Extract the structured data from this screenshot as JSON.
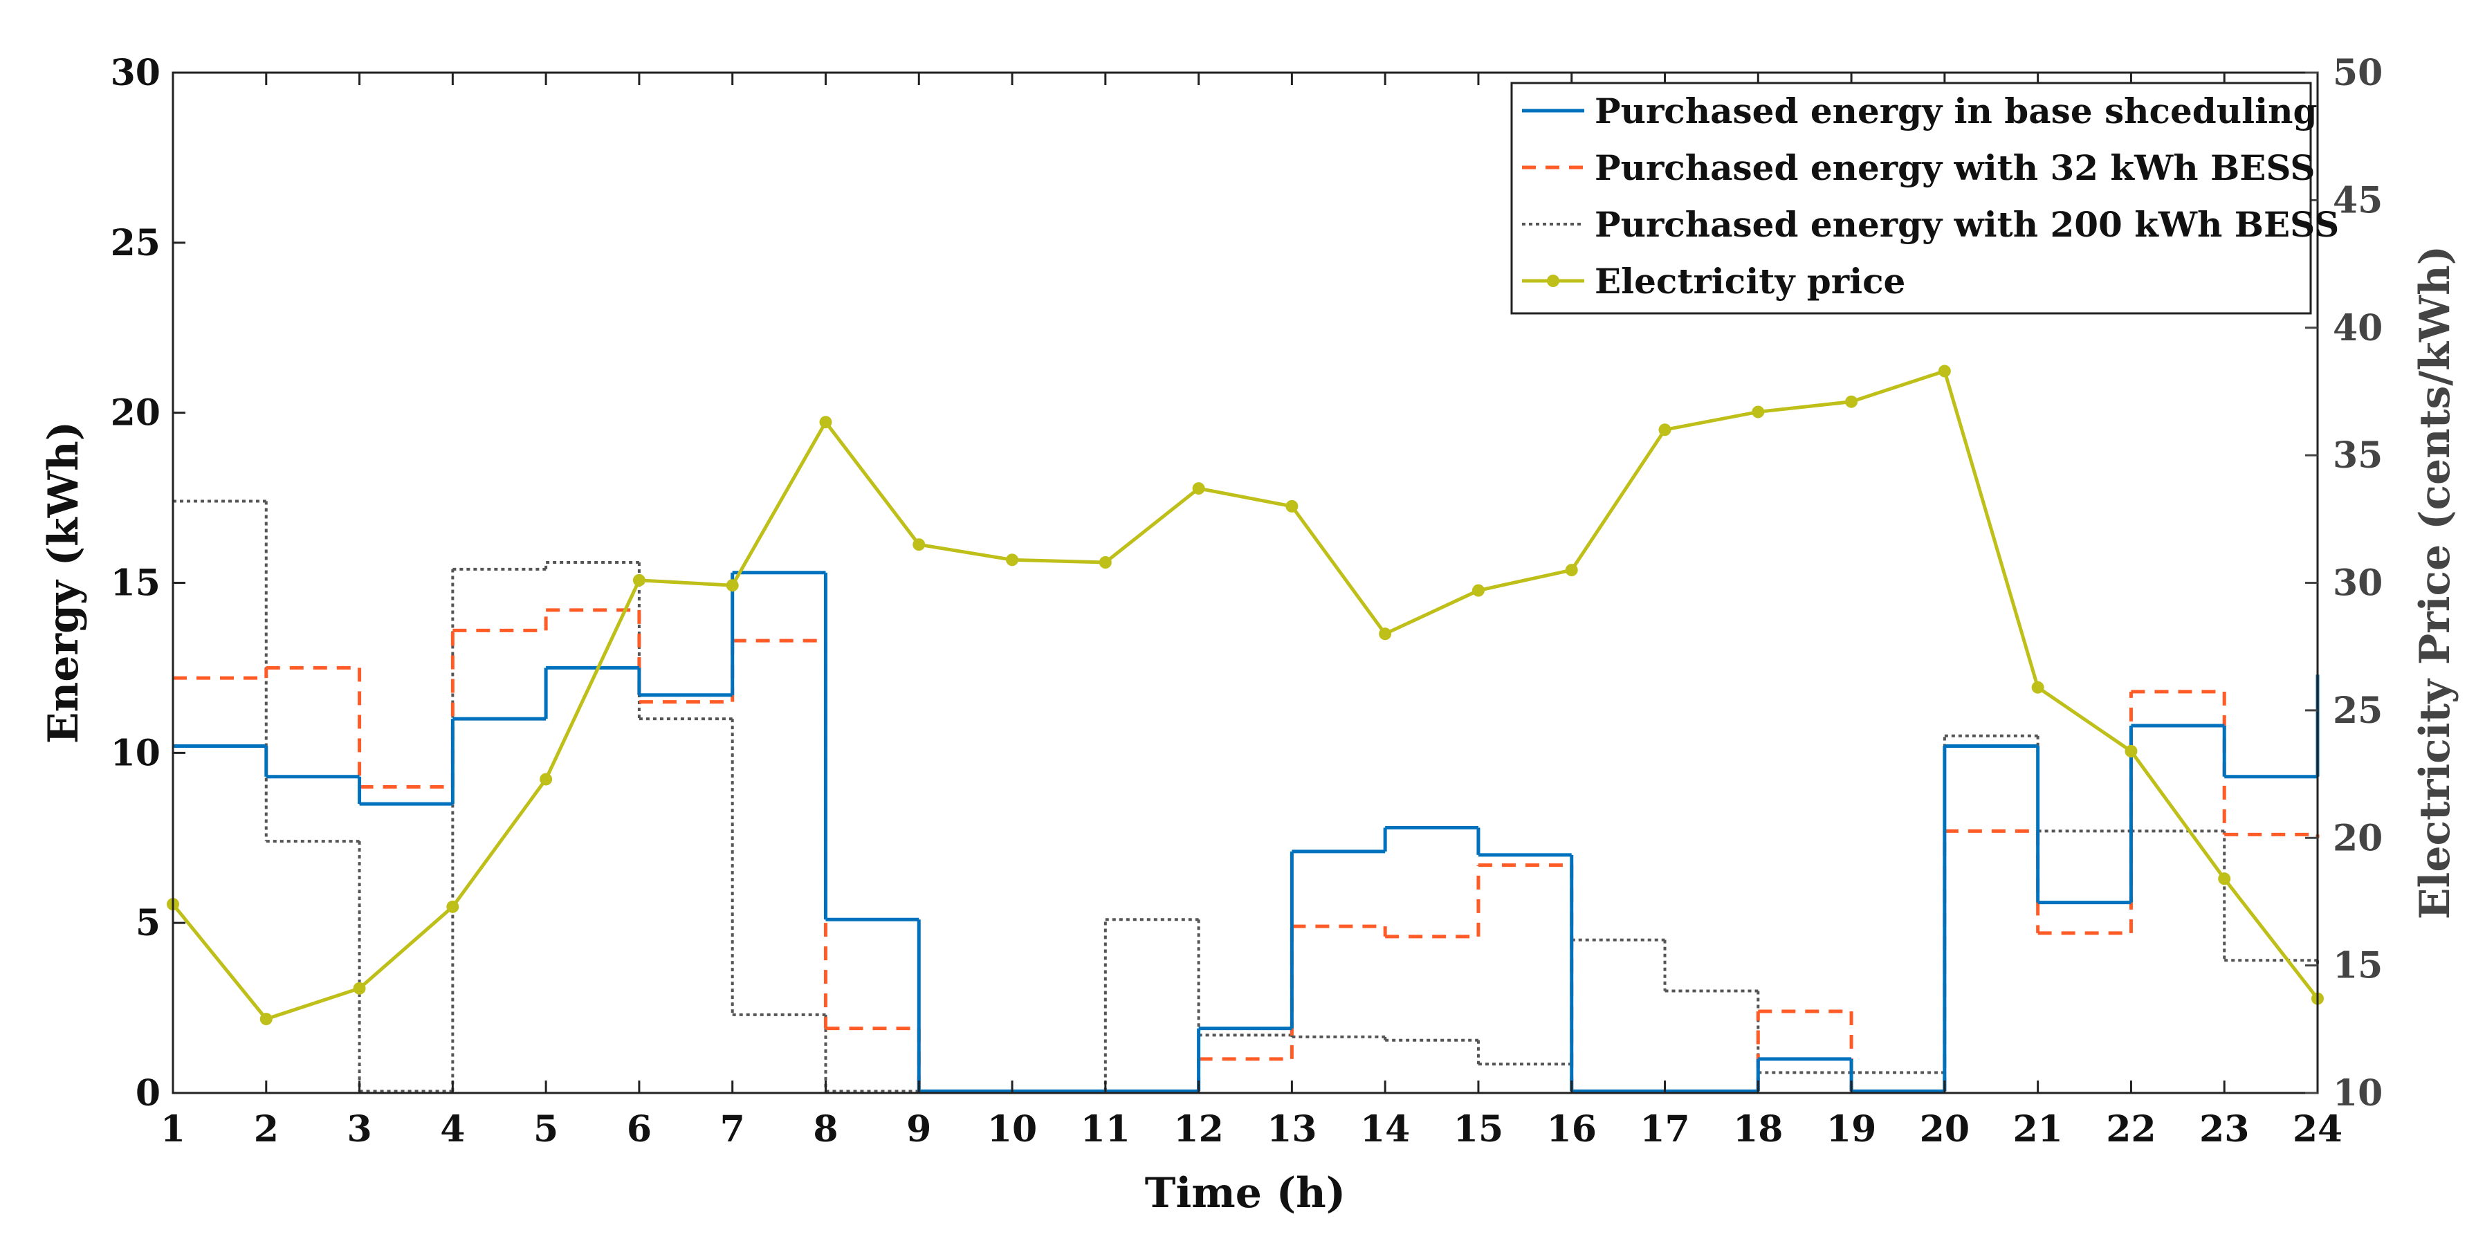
{
  "chart_data": {
    "type": "line",
    "xlabel": "Time (h)",
    "ylabel_left": "Energy (kWh)",
    "ylabel_right": "Electricity Price (cents/kWh)",
    "x_range": [
      1,
      24
    ],
    "y_left_range": [
      0,
      30
    ],
    "y_right_range": [
      10,
      50
    ],
    "x_ticks": [
      1,
      2,
      3,
      4,
      5,
      6,
      7,
      8,
      9,
      10,
      11,
      12,
      13,
      14,
      15,
      16,
      17,
      18,
      19,
      20,
      21,
      22,
      23,
      24
    ],
    "y_left_ticks": [
      0,
      5,
      10,
      15,
      20,
      25,
      30
    ],
    "y_right_ticks": [
      10,
      15,
      20,
      25,
      30,
      35,
      40,
      45,
      50
    ],
    "legend_position": "top-right",
    "series": [
      {
        "name": "Purchased energy in base shceduling",
        "axis": "left",
        "style": "stairs",
        "color": "#0072BD",
        "x": [
          1,
          2,
          3,
          4,
          5,
          6,
          7,
          8,
          9,
          10,
          11,
          12,
          13,
          14,
          15,
          16,
          17,
          18,
          19,
          20,
          21,
          22,
          23,
          24
        ],
        "values": [
          10.2,
          9.3,
          8.5,
          11.0,
          12.5,
          11.7,
          15.3,
          5.1,
          0.05,
          0.05,
          0.05,
          1.9,
          7.1,
          7.8,
          7.0,
          0.05,
          0.05,
          1.0,
          0.05,
          10.2,
          5.6,
          10.8,
          9.3,
          12.3
        ]
      },
      {
        "name": "Purchased energy with 32 kWh BESS",
        "axis": "left",
        "style": "stairs-dashed",
        "color": "#FF5B26",
        "x": [
          1,
          2,
          3,
          4,
          5,
          6,
          7,
          8,
          9,
          10,
          11,
          12,
          13,
          14,
          15,
          16,
          17,
          18,
          19,
          20,
          21,
          22,
          23,
          24
        ],
        "values": [
          12.2,
          12.5,
          9.0,
          13.6,
          14.2,
          11.5,
          13.3,
          1.9,
          0.05,
          0.05,
          0.05,
          1.0,
          4.9,
          4.6,
          6.7,
          0.05,
          0.05,
          2.4,
          0.05,
          7.7,
          4.7,
          11.8,
          7.6,
          7.5
        ]
      },
      {
        "name": "Purchased energy with 200 kWh BESS",
        "axis": "left",
        "style": "stairs-dotted",
        "color": "#555555",
        "x": [
          1,
          2,
          3,
          4,
          5,
          6,
          7,
          8,
          9,
          10,
          11,
          12,
          13,
          14,
          15,
          16,
          17,
          18,
          19,
          20,
          21,
          22,
          23,
          24
        ],
        "values": [
          17.4,
          7.4,
          0.05,
          15.4,
          15.6,
          11.0,
          2.3,
          0.05,
          0.05,
          0.05,
          5.1,
          1.7,
          1.65,
          1.55,
          0.85,
          4.5,
          3.0,
          0.6,
          0.6,
          10.5,
          7.7,
          7.7,
          3.9,
          3.7
        ]
      },
      {
        "name": "Electricity price",
        "axis": "right",
        "style": "line-markers",
        "color": "#BFBF1A",
        "x": [
          1,
          2,
          3,
          4,
          5,
          6,
          7,
          8,
          9,
          10,
          11,
          12,
          13,
          14,
          15,
          16,
          17,
          18,
          19,
          20,
          21,
          22,
          23,
          24
        ],
        "values": [
          17.4,
          12.9,
          14.1,
          17.3,
          22.3,
          30.1,
          29.9,
          36.3,
          31.5,
          30.9,
          30.8,
          33.7,
          33.0,
          28.0,
          29.7,
          30.5,
          36.0,
          36.7,
          37.1,
          38.3,
          25.9,
          23.4,
          18.4,
          13.7
        ]
      }
    ]
  }
}
